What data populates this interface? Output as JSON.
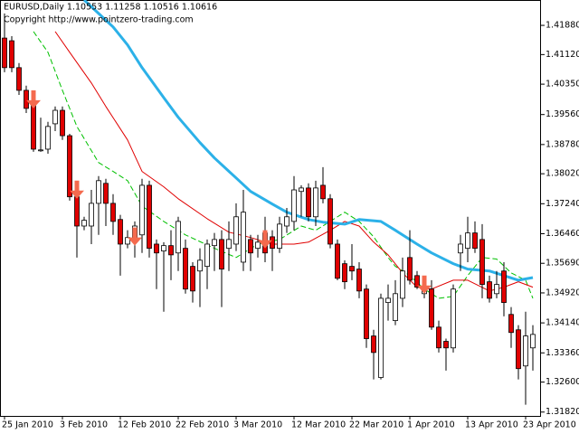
{
  "chart_data": {
    "type": "candlestick",
    "title": "EURUSD,Daily  1.10553 1.11258 1.10516 1.10616",
    "subtitle": "Copyright http://www.pointzero-trading.com",
    "categories": [
      "25 Jan 2010",
      null,
      null,
      null,
      null,
      null,
      null,
      null,
      "3 Feb 2010",
      null,
      null,
      null,
      null,
      null,
      null,
      null,
      "12 Feb 2010",
      null,
      null,
      null,
      null,
      null,
      null,
      null,
      "22 Feb 2010",
      null,
      null,
      null,
      null,
      null,
      null,
      null,
      "3 Mar 2010",
      null,
      null,
      null,
      null,
      null,
      null,
      null,
      "12 Mar 2010",
      null,
      null,
      null,
      null,
      null,
      null,
      null,
      "22 Mar 2010",
      null,
      null,
      null,
      null,
      null,
      null,
      null,
      "1 Apr 2010",
      null,
      null,
      null,
      null,
      null,
      null,
      null,
      "13 Apr 2010",
      null,
      null,
      null,
      null,
      null,
      null,
      null,
      "23 Apr 2010",
      null
    ],
    "open": [
      1.4155,
      1.4148,
      1.4078,
      1.4019,
      1.3984,
      1.3862,
      1.3866,
      1.3932,
      1.3967,
      1.3901,
      1.3742,
      1.3666,
      1.3666,
      1.3725,
      1.3777,
      1.3725,
      1.3683,
      1.3619,
      1.3624,
      1.3643,
      1.3772,
      1.3619,
      1.3601,
      1.3615,
      1.3596,
      1.3608,
      1.3561,
      1.3549,
      1.3561,
      1.3615,
      1.3631,
      1.3608,
      1.3619,
      1.3572,
      1.3631,
      1.3608,
      1.3648,
      1.3638,
      1.3608,
      1.3666,
      1.3678,
      1.3756,
      1.3765,
      1.369,
      1.3772,
      1.3737,
      1.3619,
      1.3568,
      1.3561,
      1.3554,
      1.3502,
      1.338,
      1.3272,
      1.3467,
      1.342,
      1.3478,
      1.3584,
      1.3537,
      1.349,
      1.3502,
      1.3403,
      1.3366,
      1.3349,
      1.3596,
      1.3608,
      1.3648,
      1.3631,
      1.3521,
      1.349,
      1.3549,
      1.3436,
      1.3396,
      1.3302,
      1.3349
    ],
    "high": [
      1.4219,
      1.416,
      1.409,
      1.4031,
      1.3995,
      1.3948,
      1.3937,
      1.3977,
      1.3977,
      1.3906,
      1.376,
      1.369,
      1.376,
      1.3796,
      1.3789,
      1.3749,
      1.3695,
      1.3655,
      1.3678,
      1.3789,
      1.3784,
      1.3631,
      1.3624,
      1.3655,
      1.369,
      1.3631,
      1.3572,
      1.3608,
      1.3631,
      1.3648,
      1.3655,
      1.3678,
      1.3725,
      1.376,
      1.3643,
      1.3643,
      1.369,
      1.3655,
      1.369,
      1.3713,
      1.3796,
      1.3772,
      1.3777,
      1.3784,
      1.3819,
      1.3749,
      1.3631,
      1.3577,
      1.3619,
      1.3572,
      1.3514,
      1.3396,
      1.349,
      1.3514,
      1.3525,
      1.3584,
      1.3655,
      1.3549,
      1.3525,
      1.3525,
      1.342,
      1.3373,
      1.3514,
      1.3643,
      1.369,
      1.3678,
      1.3671,
      1.3537,
      1.3549,
      1.3572,
      1.3455,
      1.3408,
      1.3443,
      1.3408
    ],
    "low": [
      1.4066,
      1.4066,
      1.4007,
      1.396,
      1.3859,
      1.3859,
      1.3854,
      1.3913,
      1.389,
      1.3732,
      1.3584,
      1.3655,
      1.3619,
      1.3643,
      1.3666,
      1.3643,
      1.3537,
      1.3608,
      1.3584,
      1.3596,
      1.3584,
      1.3502,
      1.3443,
      1.3525,
      1.3549,
      1.349,
      1.3467,
      1.3455,
      1.3502,
      1.3549,
      1.3455,
      1.3549,
      1.3601,
      1.3549,
      1.3549,
      1.3584,
      1.3572,
      1.3549,
      1.3596,
      1.3648,
      1.3655,
      1.369,
      1.3678,
      1.3666,
      1.3725,
      1.3608,
      1.3525,
      1.3502,
      1.3525,
      1.3478,
      1.3349,
      1.3267,
      1.3267,
      1.342,
      1.3408,
      1.3455,
      1.3514,
      1.3502,
      1.3478,
      1.3396,
      1.3337,
      1.329,
      1.3337,
      1.3549,
      1.3572,
      1.3596,
      1.3478,
      1.3467,
      1.3478,
      1.3431,
      1.3349,
      1.3267,
      1.3201,
      1.329
    ],
    "close": [
      1.4078,
      1.4078,
      1.4019,
      1.3972,
      1.3866,
      1.3864,
      1.3925,
      1.3967,
      1.3901,
      1.3742,
      1.3666,
      1.3681,
      1.3725,
      1.3784,
      1.3725,
      1.3678,
      1.3619,
      1.3636,
      1.3666,
      1.3772,
      1.3608,
      1.3596,
      1.3615,
      1.3591,
      1.3678,
      1.3502,
      1.3497,
      1.3577,
      1.3619,
      1.3631,
      1.3554,
      1.3631,
      1.369,
      1.3702,
      1.3596,
      1.3624,
      1.3596,
      1.3608,
      1.3671,
      1.369,
      1.376,
      1.3765,
      1.369,
      1.3765,
      1.3737,
      1.3619,
      1.353,
      1.3521,
      1.3549,
      1.3497,
      1.3373,
      1.3337,
      1.3478,
      1.3478,
      1.349,
      1.3549,
      1.3525,
      1.3507,
      1.3502,
      1.3403,
      1.3349,
      1.3349,
      1.3502,
      1.3619,
      1.3648,
      1.3608,
      1.3514,
      1.3478,
      1.3514,
      1.3467,
      1.3389,
      1.3295,
      1.338,
      1.3384
    ],
    "up_color": "#ffffff",
    "down_color": "#e00000",
    "ylim": [
      1.3172,
      1.4254
    ],
    "yticks": [
      {
        "value": 1.4188,
        "label": "1.41880"
      },
      {
        "value": 1.4112,
        "label": "1.41120"
      },
      {
        "value": 1.4035,
        "label": "1.40350"
      },
      {
        "value": 1.3956,
        "label": "1.39560"
      },
      {
        "value": 1.3878,
        "label": "1.38780"
      },
      {
        "value": 1.3802,
        "label": "1.38020"
      },
      {
        "value": 1.3724,
        "label": "1.37240"
      },
      {
        "value": 1.3646,
        "label": "1.36460"
      },
      {
        "value": 1.3569,
        "label": "1.35690"
      },
      {
        "value": 1.3492,
        "label": "1.34920"
      },
      {
        "value": 1.3414,
        "label": "1.34140"
      },
      {
        "value": 1.3336,
        "label": "1.33360"
      },
      {
        "value": 1.326,
        "label": "1.32600"
      },
      {
        "value": 1.3182,
        "label": "1.31820"
      }
    ],
    "lines": [
      {
        "color": "#00c000",
        "style": "dashed",
        "width": 1,
        "x": [
          4,
          6,
          8,
          10,
          13,
          15,
          17,
          19,
          22,
          25,
          29,
          32,
          35,
          38,
          41,
          43,
          45,
          47,
          49,
          51,
          53,
          54,
          56,
          58,
          60,
          62,
          64,
          66,
          68,
          70,
          72,
          73
        ],
        "values": [
          1.4172,
          1.4118,
          1.4019,
          1.3925,
          1.3831,
          1.3808,
          1.3784,
          1.3718,
          1.3678,
          1.3643,
          1.3608,
          1.3584,
          1.3619,
          1.3631,
          1.3666,
          1.3655,
          1.3678,
          1.3702,
          1.3678,
          1.3638,
          1.3584,
          1.3561,
          1.3537,
          1.3502,
          1.3478,
          1.3483,
          1.3537,
          1.3584,
          1.358,
          1.3544,
          1.3525,
          1.3478
        ]
      },
      {
        "color": "#e00000",
        "style": "solid",
        "width": 1,
        "x": [
          7,
          9,
          12,
          14,
          17,
          19,
          22,
          24,
          28,
          31,
          34,
          37,
          40,
          42,
          45,
          47,
          49,
          51,
          53,
          55,
          57,
          59,
          62,
          64,
          67,
          69,
          71,
          73
        ],
        "values": [
          1.4172,
          1.4118,
          1.4038,
          1.3977,
          1.389,
          1.3808,
          1.3768,
          1.3737,
          1.3685,
          1.365,
          1.3636,
          1.3619,
          1.3619,
          1.3624,
          1.3655,
          1.3678,
          1.3666,
          1.3624,
          1.3591,
          1.3544,
          1.3507,
          1.3502,
          1.3525,
          1.3525,
          1.3497,
          1.3507,
          1.3521,
          1.3507
        ]
      },
      {
        "color": "#2cb1e8",
        "style": "solid",
        "width": 3,
        "x": [
          11,
          13,
          15,
          17,
          19,
          22,
          24,
          27,
          29,
          32,
          34,
          37,
          39,
          42,
          44,
          47,
          49,
          52,
          54,
          57,
          59,
          62,
          64,
          67,
          69,
          71,
          73
        ],
        "values": [
          1.4254,
          1.4219,
          1.4184,
          1.4137,
          1.4078,
          1.4,
          1.3949,
          1.3883,
          1.3843,
          1.3791,
          1.3756,
          1.3723,
          1.3702,
          1.3683,
          1.3676,
          1.3671,
          1.3683,
          1.3678,
          1.3655,
          1.3619,
          1.3596,
          1.3568,
          1.3554,
          1.3549,
          1.3537,
          1.3525,
          1.3532
        ]
      }
    ],
    "markers": {
      "color": "#f46a4e",
      "x": [
        4,
        10,
        18,
        36,
        58
      ],
      "values": [
        1.3972,
        1.3737,
        1.3615,
        1.3608,
        1.349
      ]
    }
  }
}
